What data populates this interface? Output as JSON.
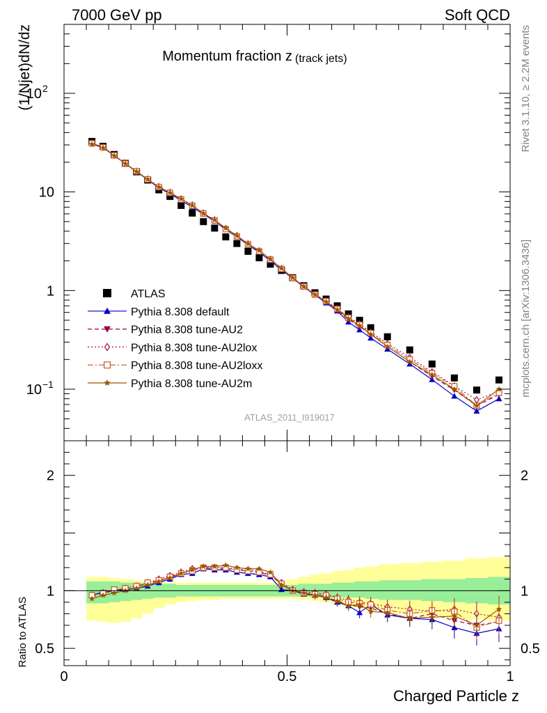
{
  "header": {
    "energy": "7000 GeV pp",
    "process": "Soft QCD",
    "rivet": "Rivet 3.1.10, ≥ 2.2M events",
    "mcplots": "mcplots.cern.ch [arXiv:1306.3436]"
  },
  "chart_data": [
    {
      "type": "scatter",
      "title": "Momentum fraction z",
      "title_sub": "(track jets)",
      "ylabel": "(1/Njet)dN/dz",
      "analysis": "ATLAS_2011_I919017",
      "yscale": "log",
      "xlim": [
        0,
        1
      ],
      "ylim": [
        0.03,
        500
      ],
      "yticks": [
        {
          "v": 100,
          "label": "10",
          "sup": "2"
        },
        {
          "v": 10,
          "label": "10",
          "sup": ""
        },
        {
          "v": 1,
          "label": "1",
          "sup": ""
        },
        {
          "v": 0.1,
          "label": "10",
          "sup": "−1"
        }
      ],
      "legend_position": "middle-left",
      "x": [
        0.0625,
        0.0875,
        0.1125,
        0.1375,
        0.1625,
        0.1875,
        0.2125,
        0.2375,
        0.2625,
        0.2875,
        0.3125,
        0.3375,
        0.3625,
        0.3875,
        0.4125,
        0.4375,
        0.4625,
        0.4875,
        0.5125,
        0.5375,
        0.5625,
        0.5875,
        0.6125,
        0.6375,
        0.6625,
        0.6875,
        0.725,
        0.775,
        0.825,
        0.875,
        0.925,
        0.975
      ],
      "series": [
        {
          "name": "ATLAS",
          "color": "#000000",
          "marker": "square-filled",
          "line": "none",
          "values": [
            32.5,
            29,
            24,
            19.5,
            16,
            13.2,
            10.5,
            9.0,
            7.3,
            6.1,
            5.0,
            4.3,
            3.5,
            3.0,
            2.5,
            2.15,
            1.85,
            1.6,
            1.35,
            1.12,
            0.95,
            0.82,
            0.7,
            0.58,
            0.5,
            0.42,
            0.34,
            0.25,
            0.18,
            0.13,
            0.098,
            0.124
          ]
        },
        {
          "name": "Pythia 8.308 default",
          "color": "#0000cc",
          "marker": "triangle-up-filled",
          "line": "solid",
          "values": [
            31.0,
            28.5,
            23.5,
            19.3,
            16.0,
            13.3,
            11.0,
            9.6,
            8.2,
            7.0,
            5.95,
            5.05,
            4.15,
            3.5,
            2.9,
            2.45,
            2.0,
            1.62,
            1.33,
            1.09,
            0.9,
            0.75,
            0.62,
            0.48,
            0.4,
            0.33,
            0.255,
            0.18,
            0.125,
            0.085,
            0.06,
            0.08
          ]
        },
        {
          "name": "Pythia 8.308 tune-AU2",
          "color": "#990044",
          "marker": "triangle-down-filled",
          "line": "dashed",
          "values": [
            31.0,
            28.3,
            23.4,
            19.4,
            16.1,
            13.4,
            11.2,
            9.8,
            8.4,
            7.3,
            6.05,
            5.15,
            4.2,
            3.55,
            2.93,
            2.5,
            2.05,
            1.65,
            1.33,
            1.09,
            0.9,
            0.77,
            0.63,
            0.51,
            0.43,
            0.36,
            0.27,
            0.19,
            0.135,
            0.098,
            0.068,
            0.088
          ]
        },
        {
          "name": "Pythia 8.308 tune-AU2lox",
          "color": "#aa1144",
          "marker": "diamond-open",
          "line": "dotted",
          "values": [
            31.2,
            28.4,
            23.6,
            19.5,
            16.2,
            13.5,
            11.3,
            9.9,
            8.5,
            7.35,
            6.1,
            5.2,
            4.25,
            3.6,
            2.97,
            2.53,
            2.08,
            1.67,
            1.35,
            1.11,
            0.92,
            0.79,
            0.66,
            0.54,
            0.46,
            0.38,
            0.29,
            0.21,
            0.15,
            0.108,
            0.078,
            0.095
          ]
        },
        {
          "name": "Pythia 8.308 tune-AU2loxx",
          "color": "#cc5522",
          "marker": "square-open",
          "line": "dashdot",
          "values": [
            31.1,
            28.3,
            23.5,
            19.4,
            16.2,
            13.4,
            11.2,
            9.8,
            8.4,
            7.25,
            6.05,
            5.15,
            4.2,
            3.55,
            2.95,
            2.5,
            2.06,
            1.66,
            1.34,
            1.1,
            0.91,
            0.78,
            0.65,
            0.53,
            0.45,
            0.37,
            0.28,
            0.2,
            0.145,
            0.107,
            0.068,
            0.092
          ]
        },
        {
          "name": "Pythia 8.308 tune-AU2m",
          "color": "#995500",
          "marker": "star-filled",
          "line": "solid",
          "values": [
            30.5,
            28.0,
            23.3,
            19.3,
            16.1,
            13.4,
            11.2,
            9.8,
            8.5,
            7.3,
            6.05,
            5.2,
            4.3,
            3.6,
            2.98,
            2.55,
            2.08,
            1.68,
            1.35,
            1.1,
            0.91,
            0.77,
            0.64,
            0.52,
            0.44,
            0.36,
            0.27,
            0.19,
            0.14,
            0.1,
            0.068,
            0.1
          ]
        }
      ]
    },
    {
      "type": "scatter",
      "ylabel": "Ratio to ATLAS",
      "xlabel": "Charged Particle z",
      "xlim": [
        0,
        1
      ],
      "ylim": [
        0.35,
        2.3
      ],
      "xticks": [
        {
          "v": 0,
          "label": "0"
        },
        {
          "v": 0.5,
          "label": "0.5"
        },
        {
          "v": 1,
          "label": "1"
        }
      ],
      "yticks": [
        {
          "v": 0.5,
          "label": "0.5"
        },
        {
          "v": 1,
          "label": "1"
        },
        {
          "v": 2,
          "label": "2"
        }
      ],
      "reference": 1,
      "band_stat_lo": [
        0.89,
        0.89,
        0.9,
        0.91,
        0.92,
        0.93,
        0.94,
        0.94,
        0.95,
        0.95,
        0.95,
        0.95,
        0.95,
        0.95,
        0.95,
        0.95,
        0.95,
        0.95,
        0.95,
        0.95,
        0.95,
        0.95,
        0.94,
        0.94,
        0.94,
        0.93,
        0.92,
        0.92,
        0.91,
        0.9,
        0.89,
        0.88
      ],
      "band_stat_hi": [
        1.08,
        1.08,
        1.08,
        1.07,
        1.07,
        1.06,
        1.06,
        1.06,
        1.05,
        1.05,
        1.05,
        1.05,
        1.05,
        1.05,
        1.05,
        1.05,
        1.05,
        1.05,
        1.05,
        1.06,
        1.06,
        1.06,
        1.07,
        1.07,
        1.08,
        1.08,
        1.09,
        1.09,
        1.1,
        1.1,
        1.11,
        1.12
      ],
      "band_tot_lo": [
        0.74,
        0.73,
        0.72,
        0.73,
        0.76,
        0.8,
        0.85,
        0.88,
        0.9,
        0.91,
        0.92,
        0.92,
        0.93,
        0.93,
        0.93,
        0.93,
        0.93,
        0.93,
        0.93,
        0.92,
        0.91,
        0.9,
        0.88,
        0.86,
        0.85,
        0.83,
        0.81,
        0.8,
        0.78,
        0.76,
        0.75,
        0.74
      ],
      "band_tot_hi": [
        1.12,
        1.12,
        1.11,
        1.1,
        1.09,
        1.08,
        1.08,
        1.07,
        1.07,
        1.07,
        1.07,
        1.07,
        1.07,
        1.07,
        1.07,
        1.07,
        1.07,
        1.08,
        1.1,
        1.12,
        1.14,
        1.15,
        1.17,
        1.18,
        1.2,
        1.21,
        1.23,
        1.24,
        1.25,
        1.26,
        1.28,
        1.29
      ],
      "series": [
        {
          "name": "Pythia 8.308 default",
          "color": "#0000cc",
          "marker": "triangle-up-filled",
          "line": "solid",
          "values": [
            0.96,
            0.99,
            1.0,
            1.01,
            1.02,
            1.04,
            1.07,
            1.1,
            1.14,
            1.15,
            1.19,
            1.18,
            1.18,
            1.16,
            1.15,
            1.14,
            1.12,
            1.01,
            1.0,
            0.97,
            0.96,
            0.94,
            0.9,
            0.87,
            0.81,
            0.88,
            0.79,
            0.76,
            0.75,
            0.68,
            0.63,
            0.67
          ]
        },
        {
          "name": "Pythia 8.308 tune-AU2",
          "color": "#990044",
          "marker": "triangle-down-filled",
          "line": "dashed",
          "values": [
            0.95,
            0.98,
            1.0,
            1.02,
            1.04,
            1.06,
            1.09,
            1.12,
            1.15,
            1.18,
            1.2,
            1.19,
            1.19,
            1.18,
            1.17,
            1.16,
            1.13,
            1.06,
            1.0,
            0.98,
            0.96,
            0.95,
            0.91,
            0.88,
            0.86,
            0.85,
            0.8,
            0.76,
            0.8,
            0.74,
            0.7,
            0.73
          ]
        },
        {
          "name": "Pythia 8.308 tune-AU2lox",
          "color": "#aa1144",
          "marker": "diamond-open",
          "line": "dotted",
          "values": [
            0.96,
            0.98,
            1.0,
            1.02,
            1.04,
            1.07,
            1.1,
            1.13,
            1.16,
            1.19,
            1.2,
            1.2,
            1.2,
            1.19,
            1.18,
            1.17,
            1.14,
            1.07,
            1.01,
            0.99,
            0.98,
            0.97,
            0.94,
            0.92,
            0.9,
            0.89,
            0.86,
            0.84,
            0.82,
            0.84,
            0.8,
            0.77
          ]
        },
        {
          "name": "Pythia 8.308 tune-AU2loxx",
          "color": "#cc5522",
          "marker": "square-open",
          "line": "dashdot",
          "values": [
            0.96,
            0.98,
            1.01,
            1.02,
            1.04,
            1.07,
            1.09,
            1.12,
            1.15,
            1.17,
            1.2,
            1.2,
            1.2,
            1.18,
            1.17,
            1.16,
            1.14,
            1.06,
            1.0,
            0.98,
            0.97,
            0.96,
            0.93,
            0.9,
            0.89,
            0.88,
            0.83,
            0.8,
            0.83,
            0.82,
            0.68,
            0.74
          ]
        },
        {
          "name": "Pythia 8.308 tune-AU2m",
          "color": "#995500",
          "marker": "star-filled",
          "line": "solid",
          "values": [
            0.93,
            0.96,
            0.98,
            1.0,
            1.02,
            1.05,
            1.08,
            1.11,
            1.15,
            1.18,
            1.21,
            1.21,
            1.22,
            1.2,
            1.19,
            1.19,
            1.16,
            1.05,
            1.0,
            0.98,
            0.96,
            0.94,
            0.91,
            0.87,
            0.88,
            0.82,
            0.81,
            0.76,
            0.77,
            0.78,
            0.7,
            0.84
          ]
        }
      ]
    }
  ]
}
